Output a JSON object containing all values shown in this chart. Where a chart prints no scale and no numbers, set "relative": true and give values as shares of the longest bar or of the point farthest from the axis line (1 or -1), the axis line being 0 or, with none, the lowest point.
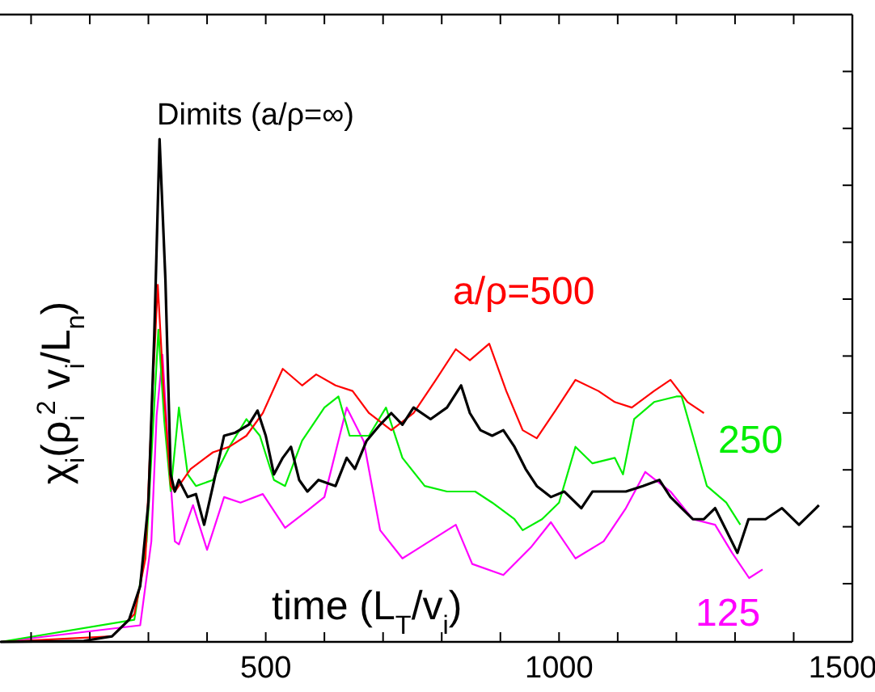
{
  "chart_data": {
    "type": "line",
    "relative": true,
    "xlabel": "time (L$_{T}$/v$_{i}$)",
    "ylabel": "χ$_{i}$(ρ$_{i}$$^{2}$ v$_{i}$/L$_{n}$)",
    "xlim": [
      47,
      1500
    ],
    "xticks": [
      {
        "value": 100,
        "label": null
      },
      {
        "value": 200,
        "label": null
      },
      {
        "value": 300,
        "label": null
      },
      {
        "value": 400,
        "label": null
      },
      500,
      {
        "value": 600,
        "label": null
      },
      {
        "value": 700,
        "label": null
      },
      {
        "value": 800,
        "label": null
      },
      {
        "value": 900,
        "label": null
      },
      1000,
      {
        "value": 1100,
        "label": null
      },
      {
        "value": 1200,
        "label": null
      },
      {
        "value": 1300,
        "label": null
      },
      {
        "value": 1400,
        "label": null
      },
      1500
    ],
    "grid": false,
    "line_style": "solid",
    "series": [
      {
        "name": "a/ρ=500",
        "color": "#ff0000",
        "x": [
          48,
          238,
          276,
          295,
          307,
          316,
          326,
          338,
          345,
          372,
          410,
          438,
          467,
          495,
          529,
          562,
          586,
          619,
          648,
          676,
          714,
          752,
          790,
          824,
          848,
          881,
          910,
          938,
          962,
          991,
          1028,
          1067,
          1095,
          1124,
          1162,
          1190,
          1219,
          1247
        ],
        "values": [
          0,
          0.011,
          0.055,
          0.166,
          0.499,
          0.71,
          0.499,
          0.311,
          0.299,
          0.344,
          0.377,
          0.388,
          0.41,
          0.455,
          0.543,
          0.51,
          0.532,
          0.51,
          0.499,
          0.455,
          0.421,
          0.455,
          0.521,
          0.582,
          0.56,
          0.593,
          0.499,
          0.421,
          0.405,
          0.455,
          0.521,
          0.499,
          0.477,
          0.466,
          0.499,
          0.521,
          0.477,
          0.455
        ]
      },
      {
        "name": "250",
        "color": "#00ee00",
        "x": [
          48,
          276,
          297,
          309,
          317,
          327,
          338,
          352,
          367,
          381,
          410,
          438,
          467,
          490,
          514,
          533,
          562,
          600,
          624,
          643,
          676,
          705,
          733,
          771,
          809,
          857,
          886,
          924,
          938,
          971,
          1000,
          1028,
          1057,
          1095,
          1109,
          1128,
          1162,
          1200,
          1209,
          1228,
          1252,
          1285,
          1309
        ],
        "values": [
          0,
          0.044,
          0.2,
          0.45,
          0.621,
          0.44,
          0.3,
          0.466,
          0.333,
          0.31,
          0.322,
          0.388,
          0.443,
          0.41,
          0.322,
          0.31,
          0.4,
          0.466,
          0.488,
          0.41,
          0.41,
          0.466,
          0.366,
          0.31,
          0.299,
          0.299,
          0.277,
          0.244,
          0.222,
          0.244,
          0.277,
          0.388,
          0.355,
          0.366,
          0.333,
          0.443,
          0.477,
          0.488,
          0.488,
          0.41,
          0.31,
          0.277,
          0.233
        ]
      },
      {
        "name": "125",
        "color": "#ff00ff",
        "x": [
          48,
          286,
          305,
          314,
          324,
          333,
          345,
          352,
          376,
          400,
          429,
          457,
          495,
          533,
          571,
          600,
          638,
          667,
          695,
          733,
          771,
          824,
          852,
          905,
          952,
          986,
          1028,
          1076,
          1114,
          1147,
          1190,
          1228,
          1266,
          1295,
          1324,
          1347
        ],
        "values": [
          0,
          0.033,
          0.2,
          0.45,
          0.571,
          0.4,
          0.2,
          0.194,
          0.272,
          0.183,
          0.288,
          0.277,
          0.294,
          0.227,
          0.261,
          0.288,
          0.466,
          0.399,
          0.222,
          0.166,
          0.194,
          0.233,
          0.155,
          0.133,
          0.188,
          0.238,
          0.166,
          0.2,
          0.266,
          0.338,
          0.299,
          0.244,
          0.233,
          0.177,
          0.127,
          0.144
        ]
      },
      {
        "name": "Dimits (a/ρ=∞)",
        "color": "#000000",
        "x": [
          48,
          190,
          238,
          267,
          286,
          300,
          310,
          319,
          329,
          338,
          345,
          352,
          367,
          381,
          395,
          410,
          429,
          448,
          471,
          486,
          500,
          514,
          529,
          543,
          557,
          571,
          590,
          619,
          638,
          652,
          672,
          695,
          714,
          733,
          752,
          781,
          809,
          833,
          848,
          866,
          886,
          905,
          924,
          943,
          962,
          986,
          1009,
          1038,
          1057,
          1086,
          1114,
          1143,
          1171,
          1190,
          1209,
          1228,
          1247,
          1266,
          1285,
          1304,
          1323,
          1352,
          1380,
          1409,
          1438,
          1443
        ],
        "values": [
          0,
          0.002,
          0.011,
          0.044,
          0.111,
          0.277,
          0.61,
          1,
          0.72,
          0.333,
          0.299,
          0.322,
          0.288,
          0.294,
          0.233,
          0.31,
          0.41,
          0.416,
          0.432,
          0.46,
          0.41,
          0.333,
          0.366,
          0.388,
          0.322,
          0.299,
          0.322,
          0.31,
          0.366,
          0.344,
          0.4,
          0.432,
          0.455,
          0.432,
          0.466,
          0.443,
          0.466,
          0.51,
          0.455,
          0.421,
          0.41,
          0.421,
          0.388,
          0.344,
          0.31,
          0.288,
          0.299,
          0.266,
          0.299,
          0.299,
          0.299,
          0.31,
          0.322,
          0.288,
          0.266,
          0.244,
          0.244,
          0.266,
          0.222,
          0.177,
          0.244,
          0.244,
          0.266,
          0.233,
          0.266,
          0.272
        ]
      }
    ]
  }
}
